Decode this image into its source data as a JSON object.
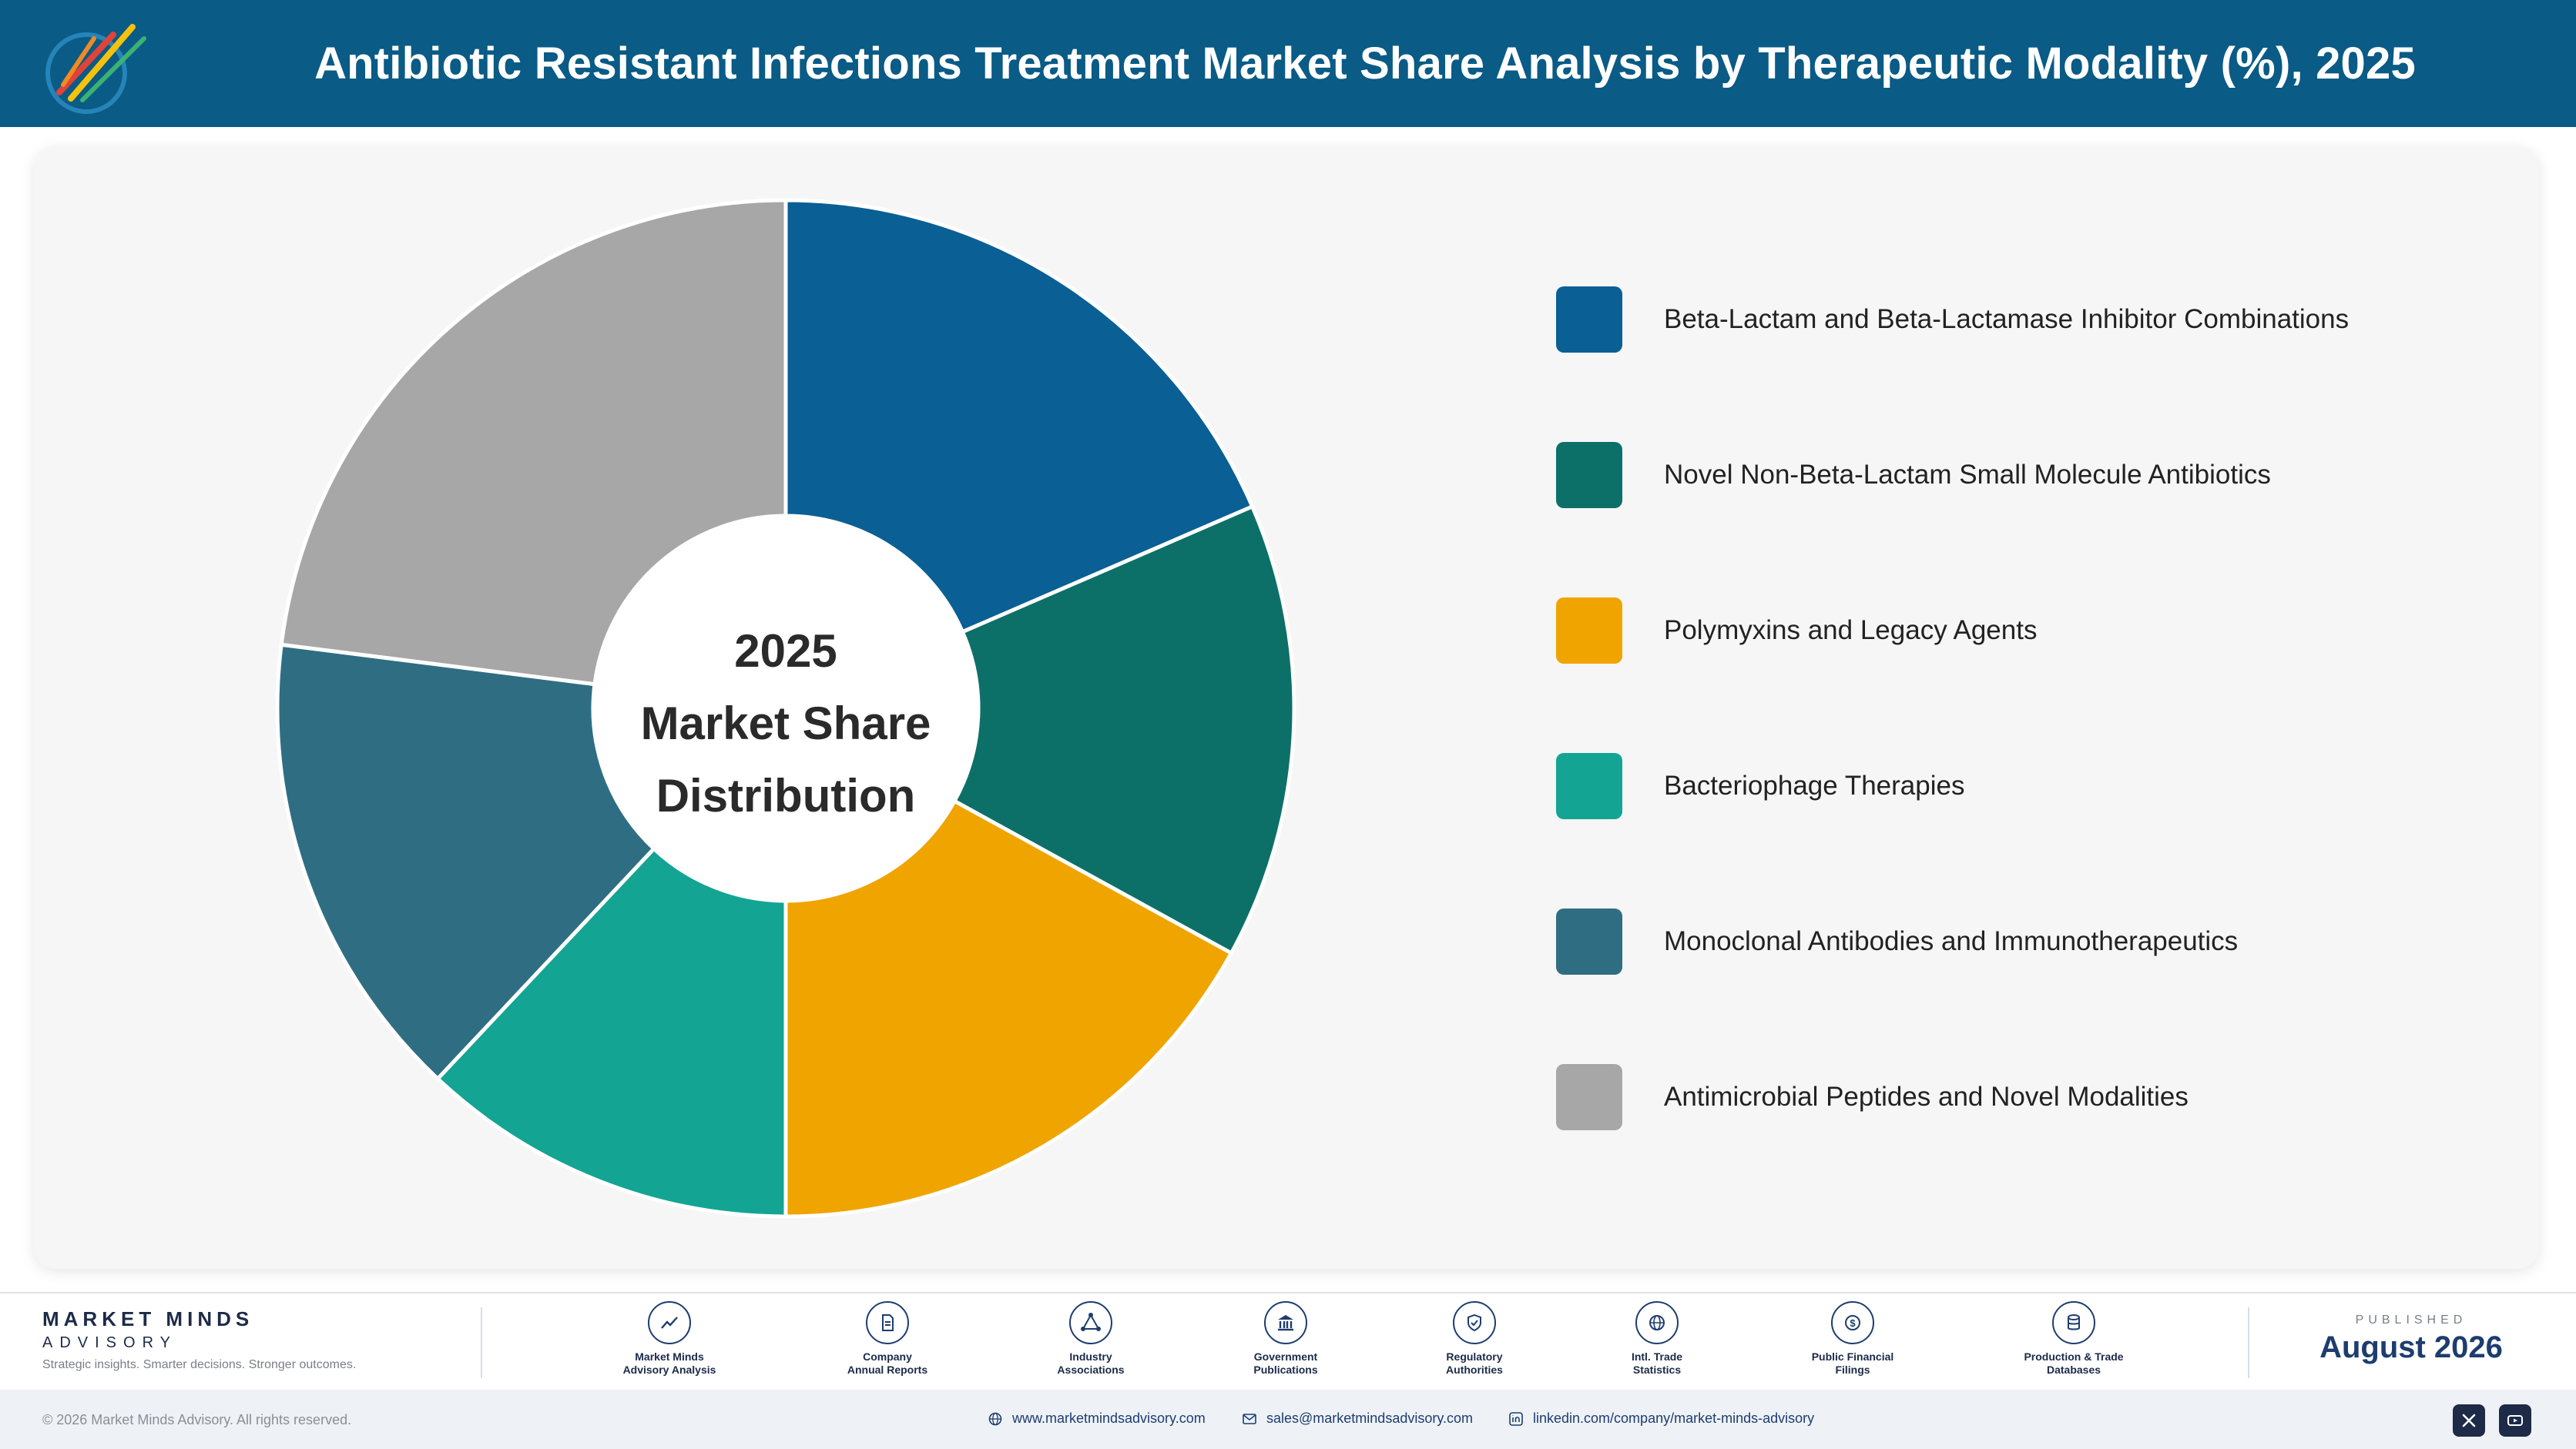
{
  "header": {
    "title": "Antibiotic Resistant Infections Treatment Market Share Analysis by Therapeutic Modality (%), 2025"
  },
  "chart_data": {
    "type": "pie",
    "style": "donut",
    "center_label": [
      "2025",
      "Market Share",
      "Distribution"
    ],
    "legend_position": "right",
    "categories": [
      "Beta-Lactam and Beta-Lactamase Inhibitor Combinations",
      "Novel Non-Beta-Lactam Small Molecule Antibiotics",
      "Polymyxins and Legacy Agents",
      "Bacteriophage Therapies",
      "Monoclonal Antibodies and Immunotherapeutics",
      "Antimicrobial Peptides and Novel Modalities"
    ],
    "values": [
      18.5,
      14.5,
      17.0,
      12.0,
      15.0,
      23.0
    ],
    "colors": [
      "#0a5f94",
      "#0c7068",
      "#f0a400",
      "#13a493",
      "#2f6e82",
      "#a7a7a7"
    ]
  },
  "footer": {
    "brand_name": "MARKET MINDS",
    "brand_sub": "ADVISORY",
    "tagline": "Strategic insights. Smarter decisions. Stronger outcomes.",
    "sources": [
      {
        "label": "Market Minds\nAdvisory Analysis",
        "icon": "chart-line-icon"
      },
      {
        "label": "Company\nAnnual Reports",
        "icon": "document-icon"
      },
      {
        "label": "Industry\nAssociations",
        "icon": "network-icon"
      },
      {
        "label": "Government\nPublications",
        "icon": "government-building-icon"
      },
      {
        "label": "Regulatory\nAuthorities",
        "icon": "shield-check-icon"
      },
      {
        "label": "Intl. Trade\nStatistics",
        "icon": "globe-icon"
      },
      {
        "label": "Public Financial\nFilings",
        "icon": "dollar-coin-icon"
      },
      {
        "label": "Production & Trade\nDatabases",
        "icon": "database-icon"
      }
    ],
    "published_label": "PUBLISHED",
    "published_date": "August 2026",
    "copyright": "© 2026 Market Minds Advisory. All rights reserved.",
    "website": "www.marketmindsadvisory.com",
    "email": "sales@marketmindsadvisory.com",
    "linkedin": "linkedin.com/company/market-minds-advisory"
  }
}
